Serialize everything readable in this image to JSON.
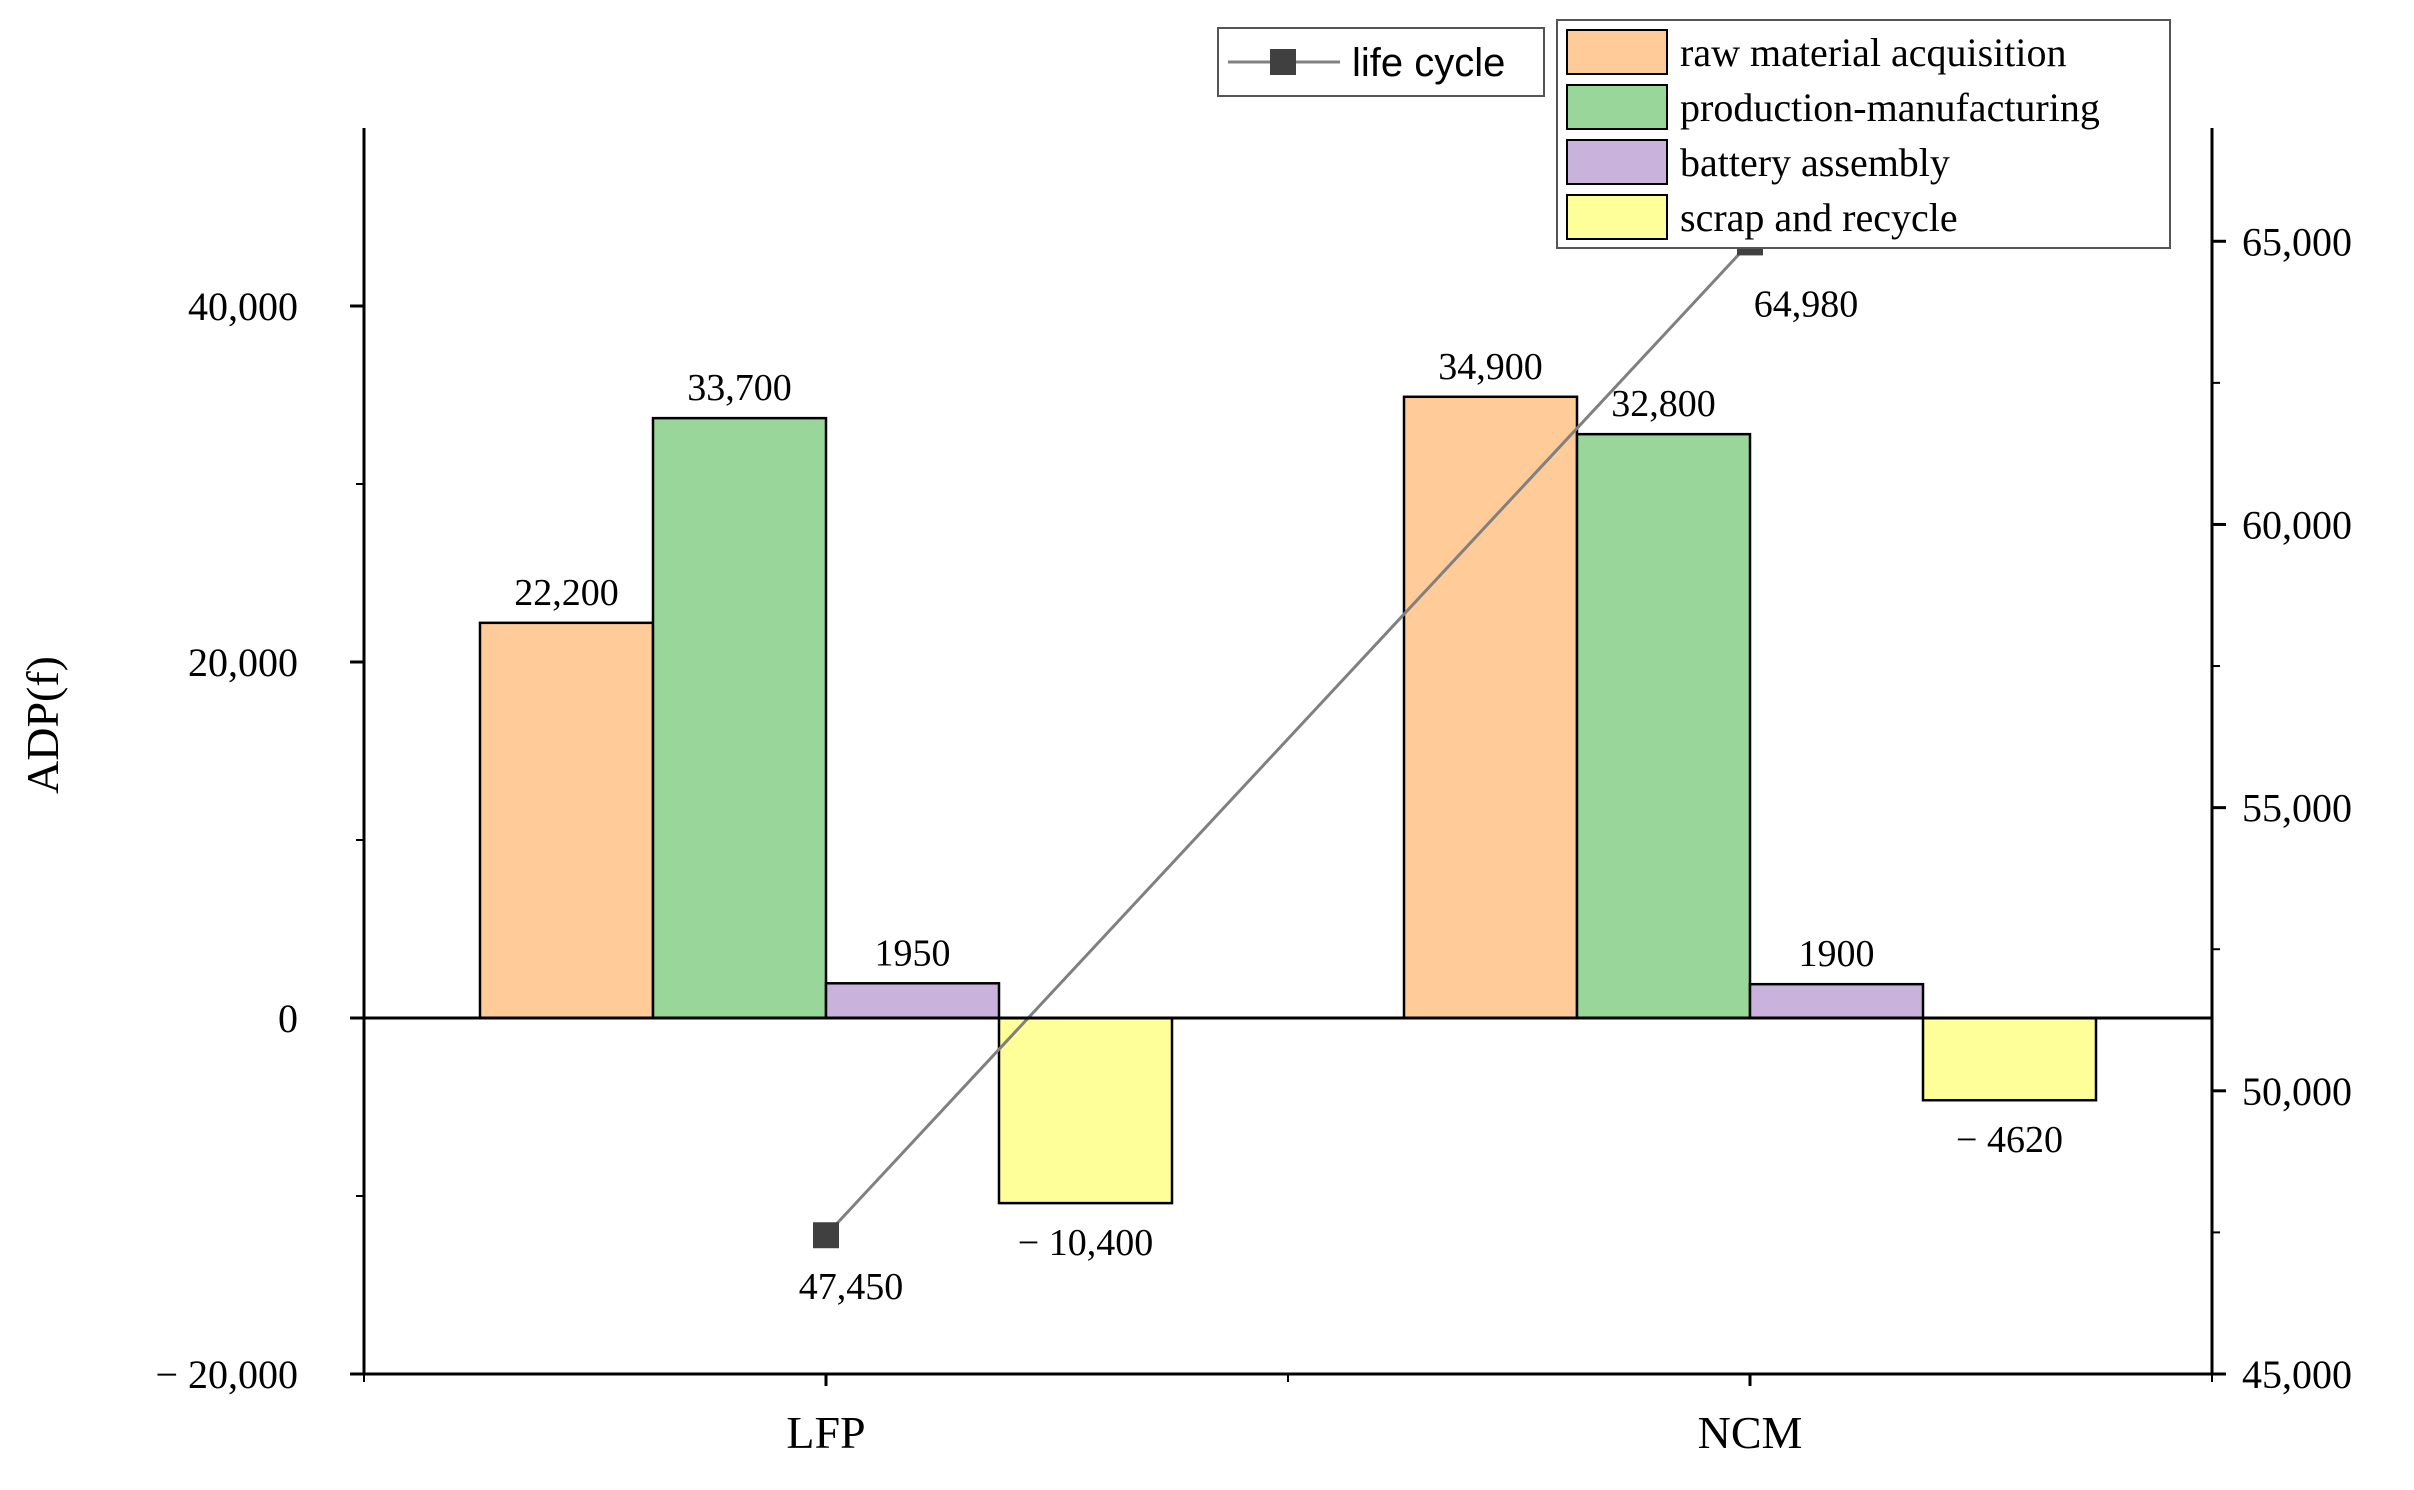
{
  "chart_data": {
    "type": "bar",
    "categories": [
      "LFP",
      "NCM"
    ],
    "ylabel": "ADP(f)",
    "xlabel": "",
    "ylim": [
      -20000,
      50000
    ],
    "y_ticks": [
      -20000,
      0,
      20000,
      40000
    ],
    "y_tick_labels": [
      "− 20,000",
      "0",
      "20,000",
      "40,000"
    ],
    "y2lim": [
      45000,
      67000
    ],
    "y2_ticks": [
      45000,
      50000,
      55000,
      60000,
      65000
    ],
    "y2_tick_labels": [
      "45,000",
      "50,000",
      "55,000",
      "60,000",
      "65,000"
    ],
    "series": [
      {
        "name": "raw material acquisition",
        "color": "#FFCC99",
        "values": [
          22200,
          34900
        ],
        "labels": [
          "22,200",
          "34,900"
        ]
      },
      {
        "name": "production-manufacturing",
        "color": "#99D699",
        "values": [
          33700,
          32800
        ],
        "labels": [
          "33,700",
          "32,800"
        ]
      },
      {
        "name": "battery assembly",
        "color": "#C9B3DD",
        "values": [
          1950,
          1900
        ],
        "labels": [
          "1950",
          "1900"
        ]
      },
      {
        "name": "scrap and recycle",
        "color": "#FFFF99",
        "values": [
          -10400,
          -4620
        ],
        "labels": [
          "− 10,400",
          "− 4620"
        ]
      }
    ],
    "line_series": {
      "name": "life cycle",
      "axis": "right",
      "color": "#808080",
      "marker_color": "#404040",
      "values": [
        47450,
        64980
      ],
      "labels": [
        "47,450",
        "64,980"
      ]
    },
    "legend_position": "top-right"
  }
}
